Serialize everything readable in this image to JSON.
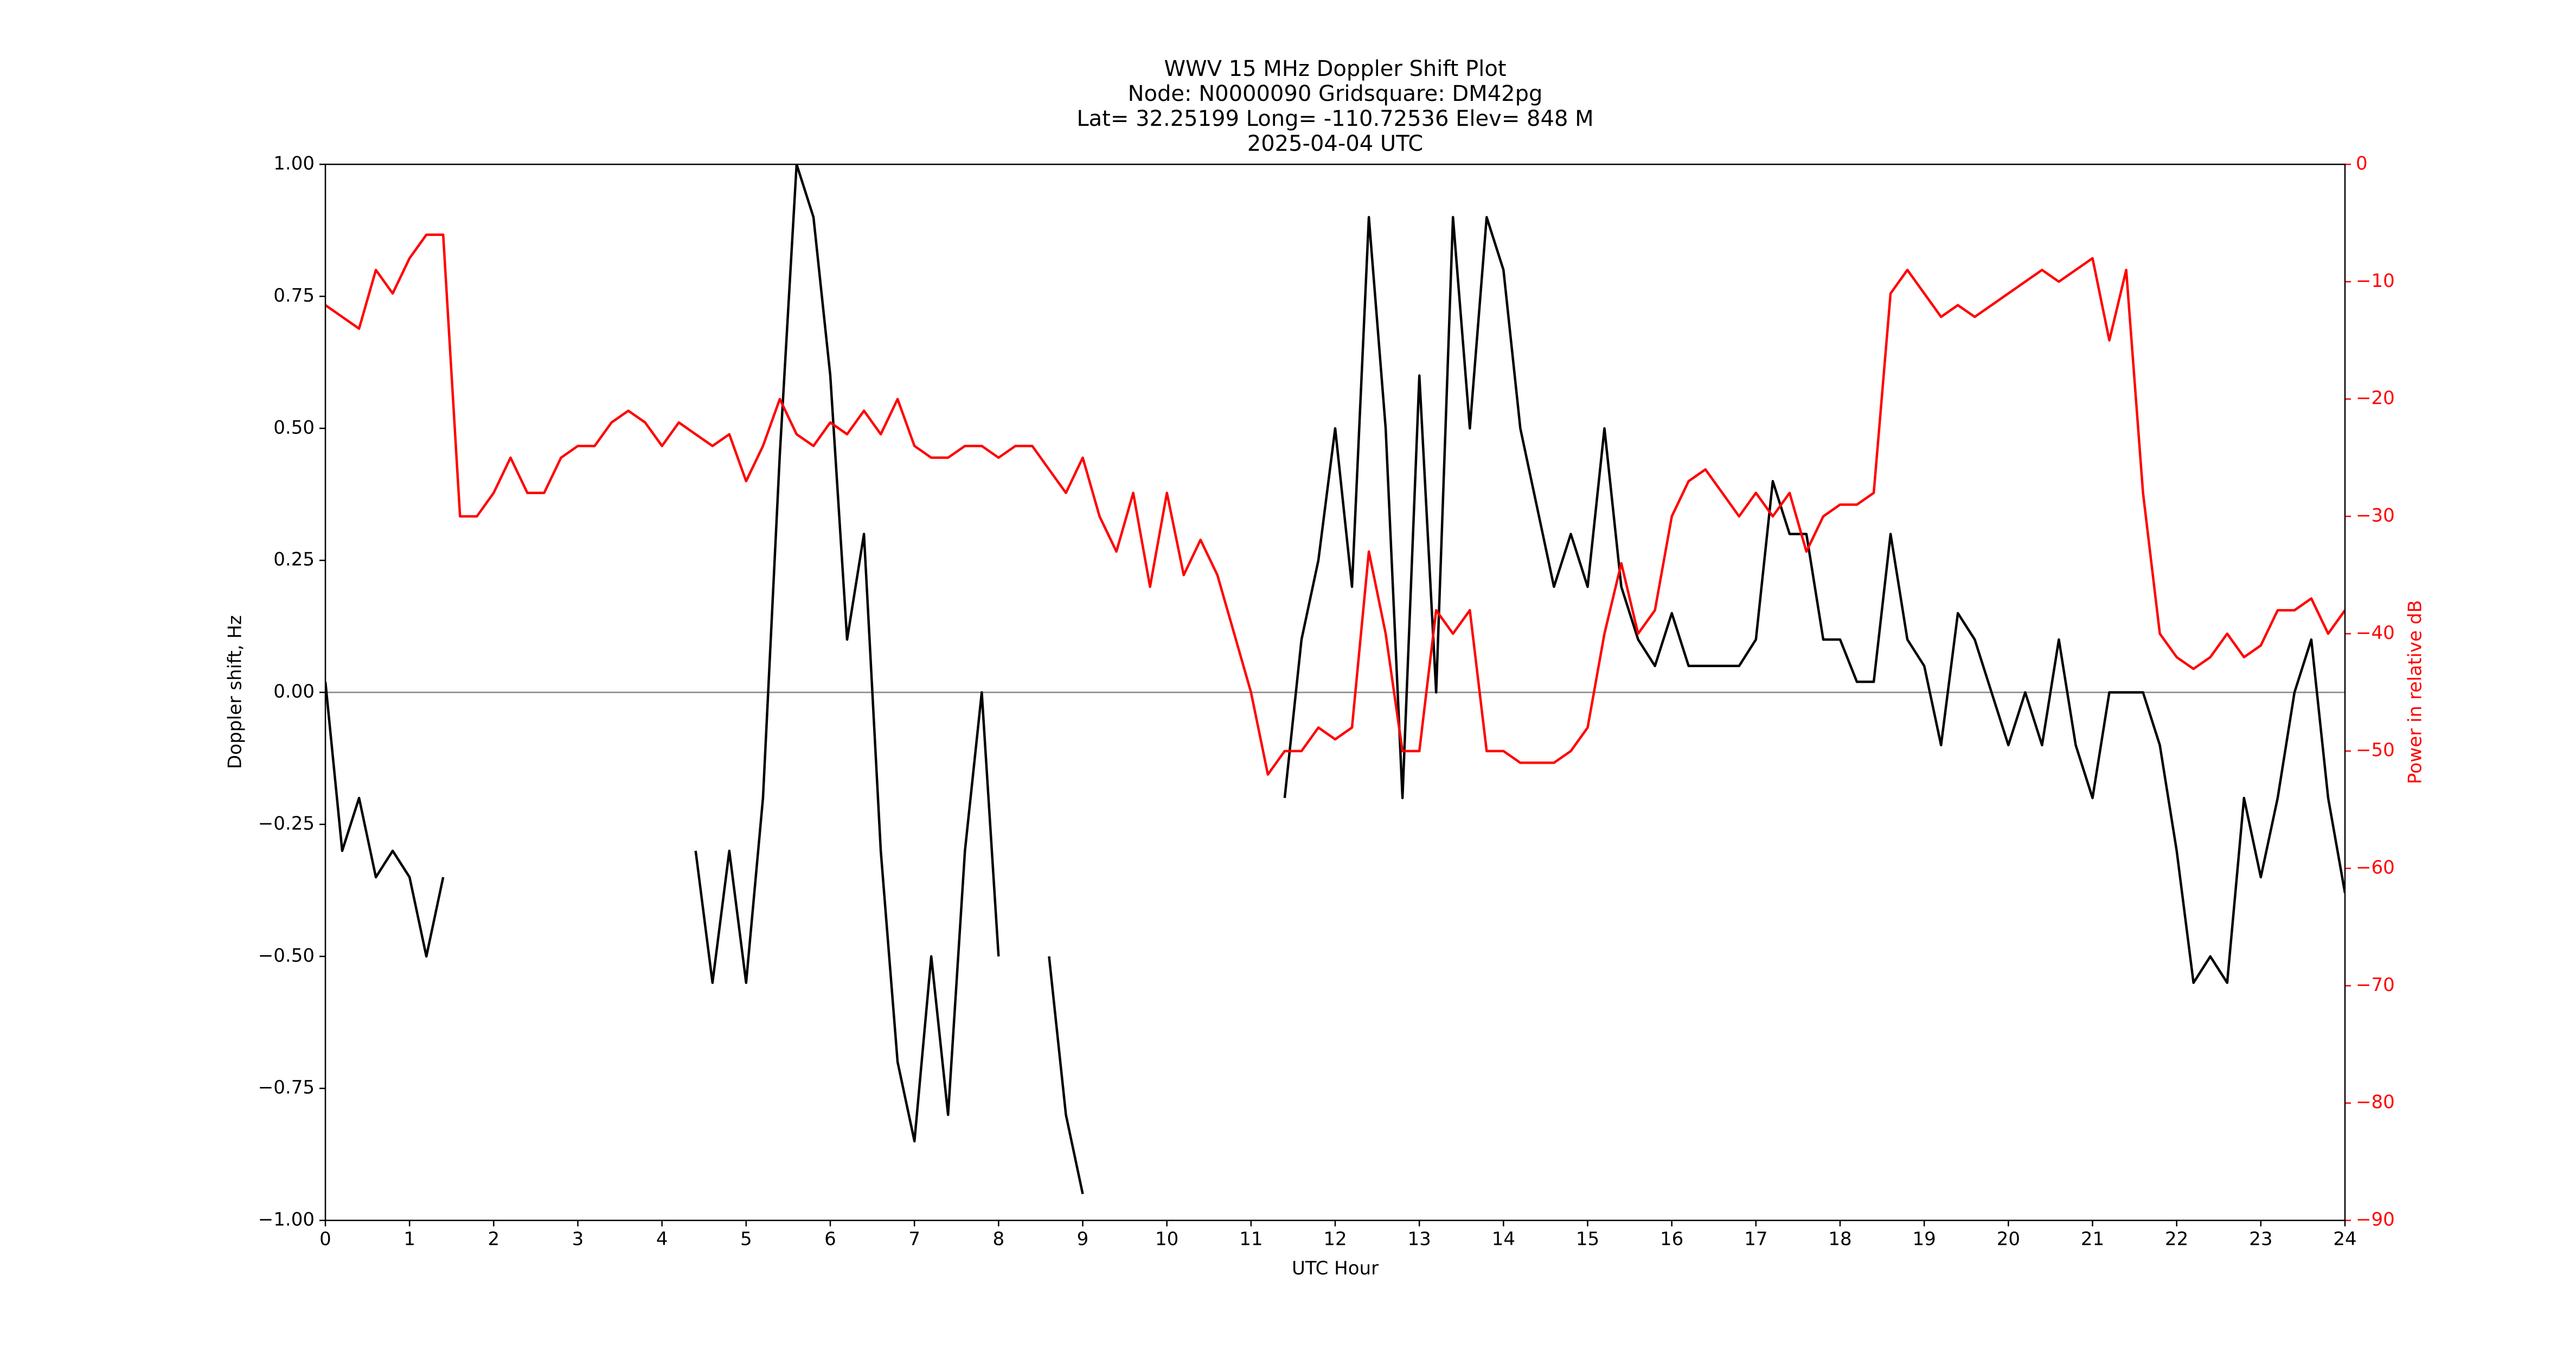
{
  "chart_data": {
    "type": "line",
    "title": [
      "WWV 15 MHz Doppler Shift Plot",
      "Node:  N0000090     Gridsquare:  DM42pg",
      "Lat= 32.25199    Long= -110.72536    Elev= 848 M",
      "2025-04-04  UTC"
    ],
    "xlabel": "UTC Hour",
    "ylabel": "Doppler shift, Hz",
    "y2label": "Power in relative dB",
    "x": [
      0,
      0.2,
      0.4,
      0.6,
      0.8,
      1,
      1.2,
      1.4,
      1.6,
      1.8,
      2,
      2.2,
      2.4,
      2.6,
      2.8,
      3,
      3.2,
      3.4,
      3.6,
      3.8,
      4,
      4.2,
      4.4,
      4.6,
      4.8,
      5,
      5.2,
      5.4,
      5.6,
      5.8,
      6,
      6.2,
      6.4,
      6.6,
      6.8,
      7,
      7.2,
      7.4,
      7.6,
      7.8,
      8,
      8.2,
      8.4,
      8.6,
      8.8,
      9,
      9.2,
      9.4,
      9.6,
      9.8,
      10,
      10.2,
      10.4,
      10.6,
      10.8,
      11,
      11.2,
      11.4,
      11.6,
      11.8,
      12,
      12.2,
      12.4,
      12.6,
      12.8,
      13,
      13.2,
      13.4,
      13.6,
      13.8,
      14,
      14.2,
      14.4,
      14.6,
      14.8,
      15,
      15.2,
      15.4,
      15.6,
      15.8,
      16,
      16.2,
      16.4,
      16.6,
      16.8,
      17,
      17.2,
      17.4,
      17.6,
      17.8,
      18,
      18.2,
      18.4,
      18.6,
      18.8,
      19,
      19.2,
      19.4,
      19.6,
      19.8,
      20,
      20.2,
      20.4,
      20.6,
      20.8,
      21,
      21.2,
      21.4,
      21.6,
      21.8,
      22,
      22.2,
      22.4,
      22.6,
      22.8,
      23,
      23.2,
      23.4,
      23.6,
      23.8,
      24
    ],
    "series": [
      {
        "color": "#000000",
        "values": [
          0.02,
          -0.3,
          -0.2,
          -0.35,
          -0.3,
          -0.35,
          -0.5,
          -0.35,
          null,
          null,
          null,
          null,
          null,
          null,
          null,
          null,
          null,
          null,
          null,
          null,
          null,
          null,
          -0.3,
          -0.55,
          -0.3,
          -0.55,
          -0.2,
          0.45,
          1.0,
          0.9,
          0.6,
          0.1,
          0.3,
          -0.3,
          -0.7,
          -0.85,
          -0.5,
          -0.8,
          -0.3,
          0.0,
          -0.5,
          null,
          null,
          -0.5,
          -0.8,
          -0.95,
          null,
          null,
          null,
          null,
          null,
          null,
          null,
          null,
          null,
          null,
          null,
          -0.2,
          0.1,
          0.25,
          0.5,
          0.2,
          0.9,
          0.5,
          -0.2,
          0.6,
          0.0,
          0.9,
          0.5,
          0.9,
          0.8,
          0.5,
          0.35,
          0.2,
          0.3,
          0.2,
          0.5,
          0.2,
          0.1,
          0.05,
          0.15,
          0.05,
          0.05,
          0.05,
          0.05,
          0.1,
          0.4,
          0.3,
          0.3,
          0.1,
          0.1,
          0.02,
          0.02,
          0.3,
          0.1,
          0.05,
          -0.1,
          0.15,
          0.1,
          0.0,
          -0.1,
          0.0,
          -0.1,
          0.1,
          -0.1,
          -0.2,
          0.0,
          0.0,
          0.0,
          -0.1,
          -0.3,
          -0.55,
          -0.5,
          -0.55,
          -0.2,
          -0.35,
          -0.2,
          0.0,
          0.1,
          -0.2,
          -0.38
        ]
      },
      {
        "color": "#ff0000",
        "axis": "y2",
        "values": [
          -12,
          -13,
          -14,
          -9,
          -11,
          -8,
          -6,
          -6,
          -30,
          -30,
          -28,
          -25,
          -28,
          -28,
          -25,
          -24,
          -24,
          -22,
          -21,
          -22,
          -24,
          -22,
          -23,
          -24,
          -23,
          -27,
          -24,
          -20,
          -23,
          -24,
          -22,
          -23,
          -21,
          -23,
          -20,
          -24,
          -25,
          -25,
          -24,
          -24,
          -25,
          -24,
          -24,
          -26,
          -28,
          -25,
          -30,
          -33,
          -28,
          -36,
          -28,
          -35,
          -32,
          -35,
          -40,
          -45,
          -52,
          -50,
          -50,
          -48,
          -49,
          -48,
          -33,
          -40,
          -50,
          -50,
          -38,
          -40,
          -38,
          -50,
          -50,
          -51,
          -51,
          -51,
          -50,
          -48,
          -40,
          -34,
          -40,
          -38,
          -30,
          -27,
          -26,
          -28,
          -30,
          -28,
          -30,
          -28,
          -33,
          -30,
          -29,
          -29,
          -28,
          -11,
          -9,
          -11,
          -13,
          -12,
          -13,
          -12,
          -11,
          -10,
          -9,
          -10,
          -9,
          -8,
          -15,
          -9,
          -28,
          -40,
          -42,
          -43,
          -42,
          -40,
          -42,
          -41,
          -38,
          -38,
          -37,
          -40,
          -38
        ]
      }
    ],
    "hline": 0,
    "xlim": [
      0,
      24
    ],
    "xticks": [
      0,
      1,
      2,
      3,
      4,
      5,
      6,
      7,
      8,
      9,
      10,
      11,
      12,
      13,
      14,
      15,
      16,
      17,
      18,
      19,
      20,
      21,
      22,
      23,
      24
    ],
    "ylim": [
      -1,
      1
    ],
    "yticks": [
      {
        "value": -1,
        "label": "−1.00"
      },
      {
        "value": -0.75,
        "label": "−0.75"
      },
      {
        "value": -0.5,
        "label": "−0.50"
      },
      {
        "value": -0.25,
        "label": "−0.25"
      },
      {
        "value": 0,
        "label": "0.00"
      },
      {
        "value": 0.25,
        "label": "0.25"
      },
      {
        "value": 0.5,
        "label": "0.50"
      },
      {
        "value": 0.75,
        "label": "0.75"
      },
      {
        "value": 1,
        "label": "1.00"
      }
    ],
    "y2lim": [
      -90,
      0
    ],
    "y2ticks": [
      {
        "value": -90,
        "label": "−90"
      },
      {
        "value": -80,
        "label": "−80"
      },
      {
        "value": -70,
        "label": "−70"
      },
      {
        "value": -60,
        "label": "−60"
      },
      {
        "value": -50,
        "label": "−50"
      },
      {
        "value": -40,
        "label": "−40"
      },
      {
        "value": -30,
        "label": "−30"
      },
      {
        "value": -20,
        "label": "−20"
      },
      {
        "value": -10,
        "label": "−10"
      },
      0
    ],
    "y2color": "#ff0000"
  }
}
